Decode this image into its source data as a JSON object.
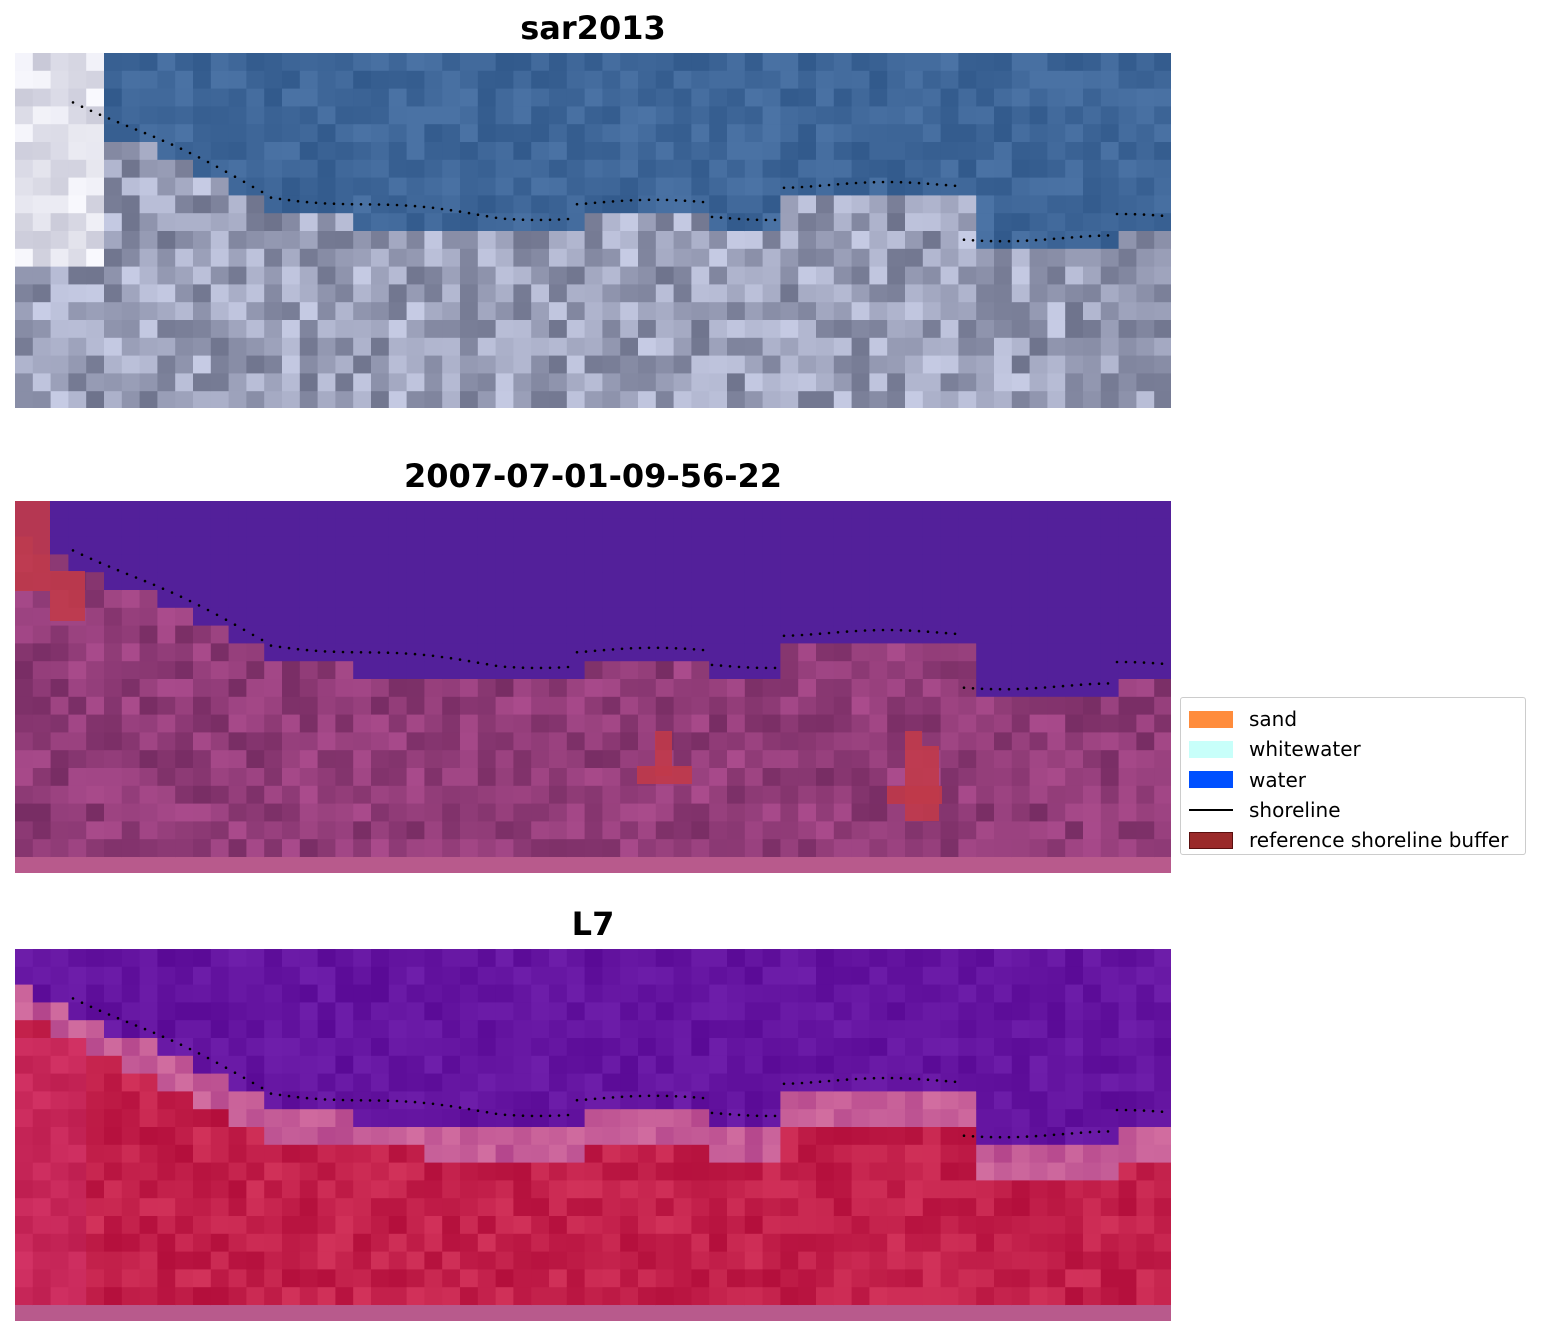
{
  "panels": [
    {
      "title": "sar2013",
      "kind": "rgb"
    },
    {
      "title": "2007-07-01-09-56-22",
      "kind": "classified"
    },
    {
      "title": "L7",
      "kind": "index"
    }
  ],
  "legend": {
    "items": [
      {
        "label": "sand",
        "color": "#ff8c3c",
        "type": "patch"
      },
      {
        "label": "whitewater",
        "color": "#c8fffa",
        "type": "patch"
      },
      {
        "label": "water",
        "color": "#0050ff",
        "type": "patch"
      },
      {
        "label": "shoreline",
        "color": "#000000",
        "type": "line"
      },
      {
        "label": "reference shoreline buffer",
        "color": "#9a2a2a",
        "type": "patch"
      }
    ]
  },
  "colors": {
    "sky_water": "#3a6496",
    "classified_water": "#53209a",
    "classified_land": "#8a3a72",
    "buffer": "#c03a4a",
    "index_water": "#5a1496",
    "index_land": "#c01e48"
  }
}
